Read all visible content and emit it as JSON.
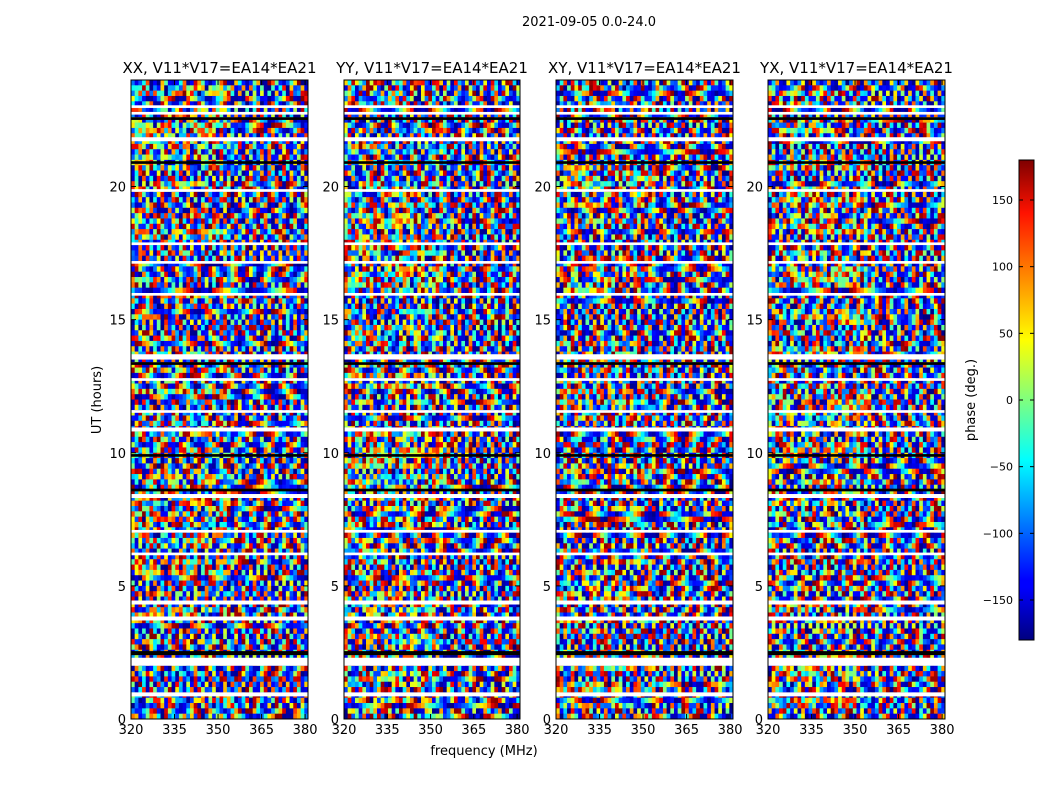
{
  "chart_data": {
    "type": "heatmap",
    "suptitle": "2021-09-05 0.0-24.0",
    "panels": [
      {
        "title": "XX, V11*V17=EA14*EA21"
      },
      {
        "title": "YY, V11*V17=EA14*EA21"
      },
      {
        "title": "XY, V11*V17=EA14*EA21"
      },
      {
        "title": "YX, V11*V17=EA14*EA21"
      }
    ],
    "xlabel": "frequency (MHz)",
    "ylabel": "UT (hours)",
    "xlim": [
      320,
      381
    ],
    "ylim": [
      0,
      24
    ],
    "xticks": [
      320,
      335,
      350,
      365,
      380
    ],
    "yticks": [
      0,
      5,
      10,
      15,
      20
    ],
    "colorbar": {
      "label": "phase (deg.)",
      "range": [
        -180,
        180
      ],
      "ticks": [
        -150,
        -100,
        -50,
        0,
        50,
        100,
        150
      ],
      "tick_labels": [
        "−150",
        "−100",
        "−50",
        "0",
        "50",
        "100",
        "150"
      ],
      "cmap": "jet"
    },
    "description": "Visibility phase vs frequency and UT; banded fringe patterns with horizontal flagged (white) gaps."
  }
}
